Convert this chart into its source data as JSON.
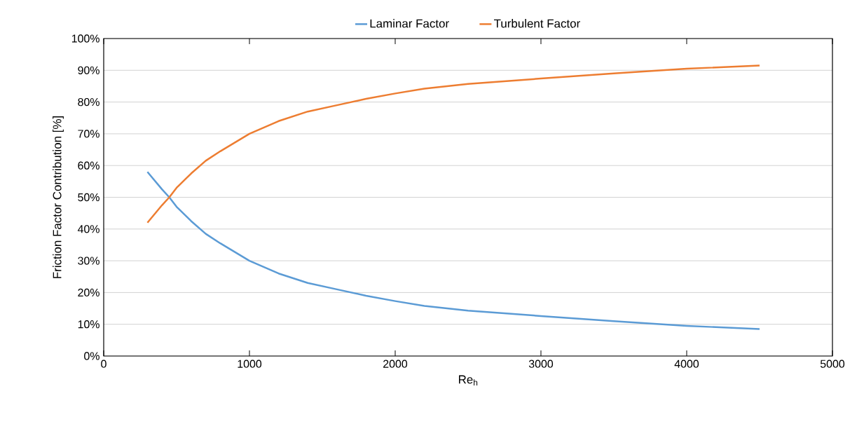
{
  "chart_data": {
    "type": "line",
    "xlabel": "Re$_{h}$",
    "ylabel": "Friction Factor Contribution [%]",
    "x": [
      300,
      400,
      450,
      500,
      600,
      700,
      800,
      1000,
      1200,
      1400,
      1600,
      1800,
      2000,
      2200,
      2500,
      3000,
      3500,
      4000,
      4500
    ],
    "series": [
      {
        "name": "Laminar Factor",
        "color": "#5b9bd5",
        "values": [
          58,
          52.5,
          50,
          47,
          42.5,
          38.5,
          35.5,
          30,
          26,
          23,
          21,
          19,
          17.3,
          15.8,
          14.3,
          12.6,
          11,
          9.5,
          8.5
        ]
      },
      {
        "name": "Turbulent Factor",
        "color": "#ed7d31",
        "values": [
          42,
          47.5,
          50,
          53,
          57.5,
          61.5,
          64.5,
          70,
          74,
          77,
          79,
          81,
          82.7,
          84.2,
          85.7,
          87.4,
          89,
          90.5,
          91.5
        ]
      }
    ],
    "xlim": [
      0,
      5000
    ],
    "xticks": [
      0,
      1000,
      2000,
      3000,
      4000,
      5000
    ],
    "ylim": [
      0,
      100
    ],
    "yticks": [
      {
        "value": 0,
        "label": "0%"
      },
      {
        "value": 10,
        "label": "10%"
      },
      {
        "value": 20,
        "label": "20%"
      },
      {
        "value": 30,
        "label": "30%"
      },
      {
        "value": 40,
        "label": "40%"
      },
      {
        "value": 50,
        "label": "50%"
      },
      {
        "value": 60,
        "label": "60%"
      },
      {
        "value": 70,
        "label": "70%"
      },
      {
        "value": 80,
        "label": "80%"
      },
      {
        "value": 90,
        "label": "90%"
      },
      {
        "value": 100,
        "label": "100%"
      }
    ],
    "grid": "y",
    "legend": "top",
    "marker": "none",
    "line_style": "solid"
  }
}
